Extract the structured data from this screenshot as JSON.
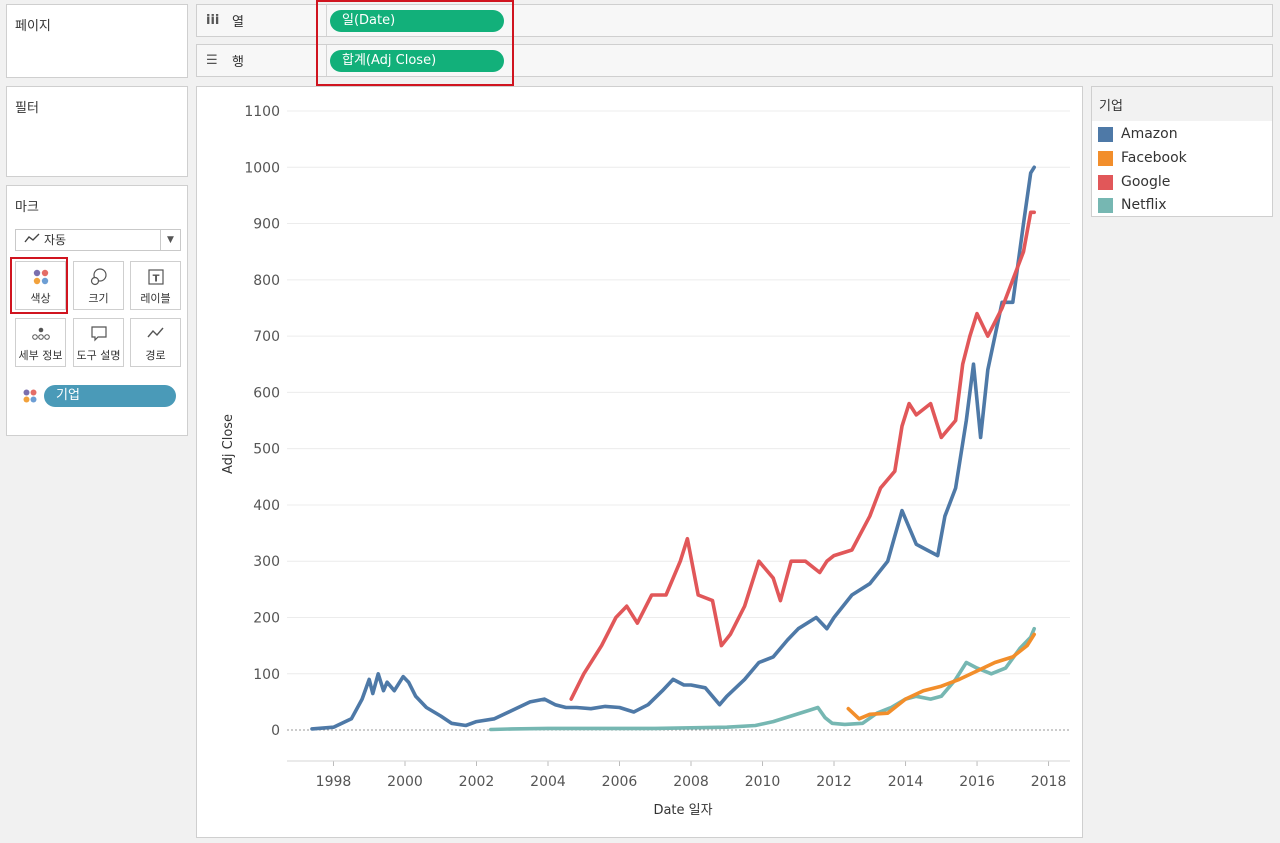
{
  "panels": {
    "pages_title": "페이지",
    "filters_title": "필터",
    "marks_title": "마크"
  },
  "shelves": {
    "columns": {
      "label": "열",
      "icon": "columns-icon",
      "pill": "일(Date)"
    },
    "rows": {
      "label": "행",
      "icon": "rows-icon",
      "pill": "합계(Adj Close)"
    }
  },
  "marks": {
    "type_label": "자동",
    "buttons": [
      {
        "label": "색상",
        "icon": "color-icon"
      },
      {
        "label": "크기",
        "icon": "size-icon"
      },
      {
        "label": "레이블",
        "icon": "label-icon"
      },
      {
        "label": "세부 정보",
        "icon": "detail-icon"
      },
      {
        "label": "도구 설명",
        "icon": "tooltip-icon"
      },
      {
        "label": "경로",
        "icon": "path-icon"
      }
    ],
    "color_field": "기업"
  },
  "legend": {
    "title": "기업",
    "items": [
      {
        "name": "Amazon",
        "color": "#4e79a7"
      },
      {
        "name": "Facebook",
        "color": "#f28e2b"
      },
      {
        "name": "Google",
        "color": "#e15759"
      },
      {
        "name": "Netflix",
        "color": "#76b7b2"
      }
    ]
  },
  "chart_data": {
    "type": "line",
    "title": "",
    "xlabel": "Date 일자",
    "ylabel": "Adj Close",
    "xlim": [
      1996.7,
      2018.6
    ],
    "ylim": [
      -55,
      1100
    ],
    "xticks": [
      1998,
      2000,
      2002,
      2004,
      2006,
      2008,
      2010,
      2012,
      2014,
      2016,
      2018
    ],
    "yticks": [
      0,
      100,
      200,
      300,
      400,
      500,
      600,
      700,
      800,
      900,
      1000,
      1100
    ],
    "grid": true,
    "series": [
      {
        "name": "Amazon",
        "color": "#4e79a7",
        "x": [
          1997.4,
          1998.0,
          1998.5,
          1998.8,
          1999.0,
          1999.1,
          1999.25,
          1999.4,
          1999.5,
          1999.7,
          1999.95,
          2000.1,
          2000.3,
          2000.6,
          2001.0,
          2001.3,
          2001.7,
          2002.0,
          2002.5,
          2003.0,
          2003.5,
          2003.9,
          2004.2,
          2004.5,
          2004.8,
          2005.2,
          2005.6,
          2006.0,
          2006.4,
          2006.8,
          2007.2,
          2007.5,
          2007.8,
          2008.0,
          2008.4,
          2008.8,
          2009.0,
          2009.5,
          2009.9,
          2010.3,
          2010.7,
          2011.0,
          2011.5,
          2011.8,
          2012.0,
          2012.5,
          2013.0,
          2013.5,
          2013.9,
          2014.3,
          2014.6,
          2014.9,
          2015.1,
          2015.4,
          2015.7,
          2015.9,
          2016.1,
          2016.3,
          2016.7,
          2017.0,
          2017.3,
          2017.5,
          2017.6
        ],
        "y": [
          2,
          5,
          20,
          55,
          90,
          65,
          100,
          70,
          85,
          70,
          95,
          85,
          60,
          40,
          25,
          12,
          8,
          15,
          20,
          35,
          50,
          55,
          45,
          40,
          40,
          38,
          42,
          40,
          32,
          45,
          70,
          90,
          80,
          80,
          75,
          45,
          60,
          90,
          120,
          130,
          160,
          180,
          200,
          180,
          200,
          240,
          260,
          300,
          390,
          330,
          320,
          310,
          380,
          430,
          550,
          650,
          520,
          640,
          760,
          760,
          900,
          990,
          1000
        ]
      },
      {
        "name": "Google",
        "color": "#e15759",
        "x": [
          2004.65,
          2005.0,
          2005.5,
          2005.9,
          2006.2,
          2006.5,
          2006.9,
          2007.3,
          2007.7,
          2007.9,
          2008.2,
          2008.6,
          2008.85,
          2009.1,
          2009.5,
          2009.9,
          2010.3,
          2010.5,
          2010.8,
          2011.2,
          2011.6,
          2011.8,
          2012.0,
          2012.5,
          2013.0,
          2013.3,
          2013.7,
          2013.9,
          2014.1,
          2014.3,
          2014.7,
          2015.0,
          2015.4,
          2015.6,
          2015.8,
          2016.0,
          2016.3,
          2016.7,
          2017.0,
          2017.3,
          2017.5,
          2017.6
        ],
        "y": [
          55,
          100,
          150,
          200,
          220,
          190,
          240,
          240,
          300,
          340,
          240,
          230,
          150,
          170,
          220,
          300,
          270,
          230,
          300,
          300,
          280,
          300,
          310,
          320,
          380,
          430,
          460,
          540,
          580,
          560,
          580,
          520,
          550,
          650,
          700,
          740,
          700,
          750,
          800,
          850,
          920,
          920
        ]
      },
      {
        "name": "Netflix",
        "color": "#76b7b2",
        "x": [
          2002.4,
          2003.0,
          2004.0,
          2005.0,
          2006.0,
          2007.0,
          2008.0,
          2009.0,
          2009.8,
          2010.3,
          2010.8,
          2011.3,
          2011.55,
          2011.75,
          2011.95,
          2012.3,
          2012.8,
          2013.2,
          2013.6,
          2014.0,
          2014.3,
          2014.7,
          2015.0,
          2015.4,
          2015.7,
          2016.0,
          2016.4,
          2016.8,
          2017.2,
          2017.5,
          2017.6
        ],
        "y": [
          1,
          2,
          3,
          3,
          3,
          3,
          4,
          5,
          8,
          15,
          25,
          35,
          40,
          22,
          12,
          10,
          12,
          30,
          40,
          55,
          60,
          55,
          60,
          90,
          120,
          110,
          100,
          110,
          145,
          165,
          180
        ]
      },
      {
        "name": "Facebook",
        "color": "#f28e2b",
        "x": [
          2012.4,
          2012.7,
          2013.0,
          2013.5,
          2014.0,
          2014.5,
          2015.0,
          2015.5,
          2016.0,
          2016.5,
          2017.0,
          2017.4,
          2017.6
        ],
        "y": [
          38,
          20,
          28,
          30,
          55,
          70,
          78,
          90,
          105,
          120,
          130,
          150,
          170
        ]
      }
    ]
  }
}
